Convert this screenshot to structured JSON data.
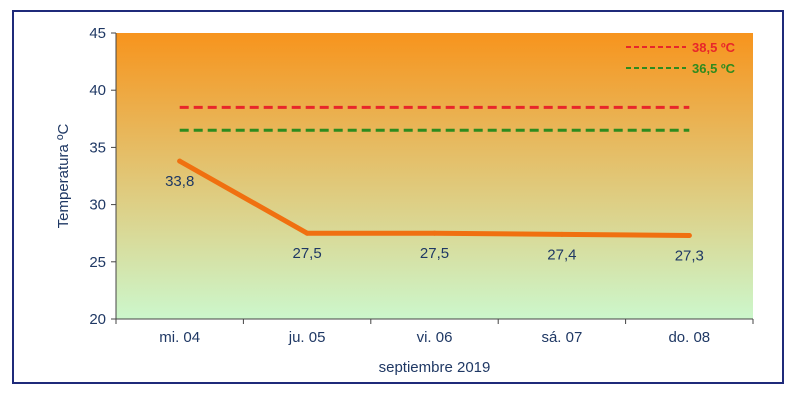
{
  "chart_data": {
    "type": "line",
    "xlabel": "septiembre 2019",
    "ylabel": "Temperatura ºC",
    "ylim": [
      20,
      45
    ],
    "yticks": [
      20,
      25,
      30,
      35,
      40,
      45
    ],
    "categories": [
      "mi. 04",
      "ju. 05",
      "vi. 06",
      "sá. 07",
      "do. 08"
    ],
    "series": [
      {
        "values": [
          33.8,
          27.5,
          27.5,
          27.4,
          27.3
        ],
        "data_labels": [
          "33,8",
          "27,5",
          "27,5",
          "27,4",
          "27,3"
        ],
        "color": "#f07010"
      }
    ],
    "reference_lines": [
      {
        "name": "38,5 ºC",
        "value": 38.5,
        "color": "#e8262a"
      },
      {
        "name": "36,5 ºC",
        "value": 36.5,
        "color": "#2e8b1e"
      }
    ],
    "background_gradient": {
      "top": "#f7941d",
      "bottom": "#ccf7cc"
    },
    "legend_position": "top-right",
    "grid": false
  }
}
